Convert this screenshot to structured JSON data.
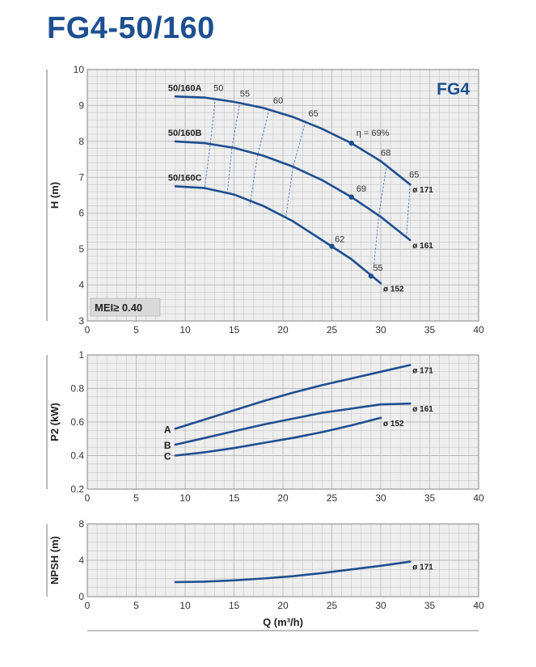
{
  "title": "FG4-50/160",
  "colors": {
    "curve": "#1d4f91",
    "brand": "#1d4f91",
    "grid": "#b9b9b9",
    "plot_bg": "#eeeeee",
    "eff": "#3a7bc0"
  },
  "chart_data": [
    {
      "id": "head",
      "type": "line",
      "ylabel": "H (m)",
      "xlabel": "",
      "xlim": [
        0,
        40
      ],
      "ylim": [
        3,
        10
      ],
      "xticks": [
        "0",
        "5",
        "10",
        "15",
        "20",
        "25",
        "30",
        "35",
        "40"
      ],
      "yticks": [
        "3",
        "4",
        "5",
        "6",
        "7",
        "8",
        "9",
        "10"
      ],
      "brand_label": "FG4",
      "mei_label": "MEI≥ 0.40",
      "series": [
        {
          "name": "50/160A",
          "end_label": "ø 171",
          "x": [
            9,
            12,
            15,
            18,
            21,
            24,
            27,
            30,
            33
          ],
          "y": [
            9.25,
            9.22,
            9.1,
            8.93,
            8.68,
            8.35,
            7.95,
            7.45,
            6.8
          ]
        },
        {
          "name": "50/160B",
          "end_label": "ø 161",
          "x": [
            9,
            12,
            15,
            18,
            21,
            24,
            27,
            30,
            33
          ],
          "y": [
            8.0,
            7.95,
            7.82,
            7.6,
            7.3,
            6.92,
            6.45,
            5.9,
            5.25
          ]
        },
        {
          "name": "50/160C",
          "end_label": "ø 152",
          "x": [
            9,
            12,
            15,
            18,
            21,
            24,
            27,
            30
          ],
          "y": [
            6.75,
            6.7,
            6.52,
            6.2,
            5.78,
            5.25,
            4.72,
            4.05
          ]
        }
      ],
      "efficiency_lines": [
        {
          "label": "50",
          "x": [
            13.1,
            12.6,
            12.0
          ],
          "y": [
            9.2,
            8.0,
            6.7
          ]
        },
        {
          "label": "55",
          "x": [
            15.6,
            14.8,
            14.3
          ],
          "y": [
            9.1,
            7.85,
            6.55
          ]
        },
        {
          "label": "60",
          "x": [
            18.6,
            17.4,
            16.6
          ],
          "y": [
            8.9,
            7.6,
            6.2
          ]
        },
        {
          "label": "65",
          "x": [
            22.3,
            21.0,
            20.3
          ],
          "y": [
            8.55,
            7.25,
            5.9
          ]
        },
        {
          "label": "68",
          "x": [
            30.6,
            29.8,
            29.3
          ],
          "y": [
            7.35,
            5.95,
            4.55
          ]
        },
        {
          "label": "65",
          "x": [
            33.0,
            32.6
          ],
          "y": [
            6.8,
            5.3
          ]
        }
      ],
      "point_labels": [
        {
          "text": "50",
          "x": 12.9,
          "y": 9.4
        },
        {
          "text": "55",
          "x": 15.6,
          "y": 9.25
        },
        {
          "text": "60",
          "x": 19.0,
          "y": 9.05
        },
        {
          "text": "65",
          "x": 22.6,
          "y": 8.7
        },
        {
          "text": "η = 69%",
          "x": 27.5,
          "y": 8.15
        },
        {
          "text": "68",
          "x": 30.0,
          "y": 7.6
        },
        {
          "text": "65",
          "x": 32.9,
          "y": 7.0
        },
        {
          "text": "69",
          "x": 27.5,
          "y": 6.6
        },
        {
          "text": "62",
          "x": 25.3,
          "y": 5.2
        },
        {
          "text": "55",
          "x": 29.2,
          "y": 4.4
        }
      ],
      "markers": [
        {
          "x": 27,
          "y": 7.95
        },
        {
          "x": 27,
          "y": 6.45
        },
        {
          "x": 25,
          "y": 5.08
        },
        {
          "x": 29,
          "y": 4.25
        }
      ]
    },
    {
      "id": "power",
      "type": "line",
      "ylabel": "P2 (kW)",
      "xlabel": "",
      "xlim": [
        0,
        40
      ],
      "ylim": [
        0.2,
        1.0
      ],
      "xticks": [
        "0",
        "5",
        "10",
        "15",
        "20",
        "25",
        "30",
        "35",
        "40"
      ],
      "yticks": [
        "0.2",
        "0.4",
        "0.6",
        "0.8",
        "1"
      ],
      "series": [
        {
          "name": "A",
          "end_label": "ø 171",
          "x": [
            9,
            12,
            15,
            18,
            21,
            24,
            27,
            30,
            33
          ],
          "y": [
            0.56,
            0.615,
            0.67,
            0.725,
            0.775,
            0.82,
            0.86,
            0.9,
            0.94
          ]
        },
        {
          "name": "B",
          "end_label": "ø 161",
          "x": [
            9,
            12,
            15,
            18,
            21,
            24,
            27,
            30,
            33
          ],
          "y": [
            0.465,
            0.505,
            0.545,
            0.585,
            0.62,
            0.655,
            0.68,
            0.705,
            0.71
          ]
        },
        {
          "name": "C",
          "end_label": "ø 152",
          "x": [
            9,
            12,
            15,
            18,
            21,
            24,
            27,
            30
          ],
          "y": [
            0.4,
            0.42,
            0.445,
            0.475,
            0.505,
            0.54,
            0.58,
            0.625
          ]
        }
      ]
    },
    {
      "id": "npsh",
      "type": "line",
      "ylabel": "NPSH (m)",
      "xlabel": "Q (m³/h)",
      "xlim": [
        0,
        40
      ],
      "ylim": [
        0,
        8
      ],
      "xticks": [
        "0",
        "5",
        "10",
        "15",
        "20",
        "25",
        "30",
        "35",
        "40"
      ],
      "yticks": [
        "0",
        "4",
        "8"
      ],
      "series": [
        {
          "name": "NPSH",
          "end_label": "ø 171",
          "x": [
            9,
            12,
            15,
            18,
            21,
            24,
            27,
            30,
            33
          ],
          "y": [
            1.6,
            1.65,
            1.8,
            2.0,
            2.25,
            2.6,
            3.0,
            3.4,
            3.85
          ]
        }
      ]
    }
  ]
}
